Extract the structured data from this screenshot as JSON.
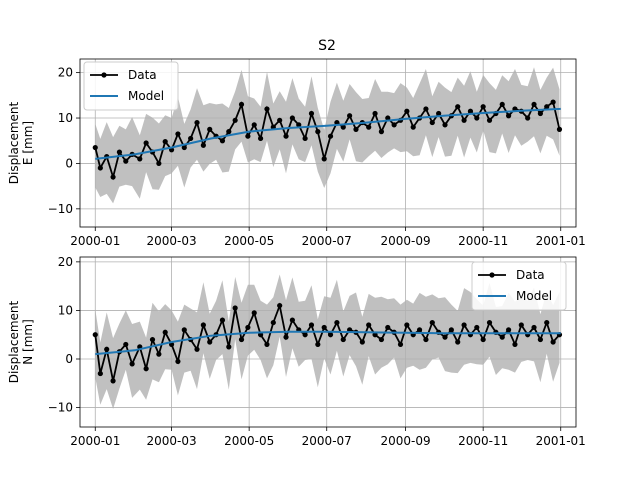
{
  "chart_data": [
    {
      "type": "line",
      "title": "S2",
      "xlabel": "",
      "ylabel": "Displacement\nE [mm]",
      "xlim": [
        "1999-12-20",
        "2001-01-13"
      ],
      "ylim": [
        -14,
        23
      ],
      "x_ticks": [
        "2000-01",
        "2000-03",
        "2000-05",
        "2000-07",
        "2000-09",
        "2000-11",
        "2001-01"
      ],
      "y_ticks": [
        -10,
        0,
        10,
        20
      ],
      "grid": true,
      "legend": {
        "position": "top-left",
        "entries": [
          "Data",
          "Model"
        ]
      },
      "colors": {
        "data": "#000000",
        "model": "#1f77b4",
        "band": "#c0c0c0"
      },
      "series": [
        {
          "name": "Data",
          "x": [
            "2000-01-01",
            "2000-01-05",
            "2000-01-10",
            "2000-01-15",
            "2000-01-20",
            "2000-01-25",
            "2000-01-30",
            "2000-02-05",
            "2000-02-10",
            "2000-02-15",
            "2000-02-20",
            "2000-02-25",
            "2000-03-01",
            "2000-03-06",
            "2000-03-11",
            "2000-03-16",
            "2000-03-21",
            "2000-03-26",
            "2000-03-31",
            "2000-04-05",
            "2000-04-10",
            "2000-04-15",
            "2000-04-20",
            "2000-04-25",
            "2000-04-30",
            "2000-05-05",
            "2000-05-10",
            "2000-05-15",
            "2000-05-20",
            "2000-05-25",
            "2000-05-30",
            "2000-06-04",
            "2000-06-09",
            "2000-06-14",
            "2000-06-19",
            "2000-06-24",
            "2000-06-29",
            "2000-07-04",
            "2000-07-09",
            "2000-07-14",
            "2000-07-19",
            "2000-07-24",
            "2000-07-29",
            "2000-08-03",
            "2000-08-08",
            "2000-08-13",
            "2000-08-18",
            "2000-08-23",
            "2000-08-28",
            "2000-09-02",
            "2000-09-07",
            "2000-09-12",
            "2000-09-17",
            "2000-09-22",
            "2000-09-27",
            "2000-10-02",
            "2000-10-07",
            "2000-10-12",
            "2000-10-17",
            "2000-10-22",
            "2000-10-27",
            "2000-11-01",
            "2000-11-06",
            "2000-11-11",
            "2000-11-16",
            "2000-11-21",
            "2000-11-26",
            "2000-12-01",
            "2000-12-06",
            "2000-12-11",
            "2000-12-16",
            "2000-12-21",
            "2000-12-26",
            "2000-12-31"
          ],
          "values": [
            3.5,
            -1.0,
            1.5,
            -3.0,
            2.5,
            0.5,
            2.0,
            1.0,
            4.5,
            2.5,
            0.0,
            4.8,
            3.0,
            6.5,
            3.5,
            5.5,
            9.0,
            4.0,
            7.5,
            6.0,
            5.0,
            7.0,
            9.5,
            13.0,
            6.0,
            8.5,
            5.5,
            12.0,
            8.0,
            9.5,
            6.0,
            10.0,
            8.5,
            5.5,
            11.0,
            7.0,
            1.0,
            6.0,
            9.0,
            8.0,
            10.5,
            7.5,
            9.0,
            8.0,
            11.0,
            7.0,
            10.0,
            8.5,
            9.5,
            11.5,
            8.0,
            10.0,
            12.0,
            9.0,
            11.0,
            8.5,
            10.5,
            12.5,
            9.5,
            11.5,
            10.0,
            12.5,
            9.5,
            11.0,
            13.0,
            10.5,
            12.0,
            11.5,
            10.0,
            13.0,
            11.0,
            12.5,
            13.5,
            7.5
          ]
        },
        {
          "name": "Model",
          "x": [
            "2000-01-01",
            "2000-02-01",
            "2000-03-01",
            "2000-04-01",
            "2000-05-01",
            "2000-06-01",
            "2000-07-01",
            "2000-08-01",
            "2000-09-01",
            "2000-10-01",
            "2000-11-01",
            "2000-12-01",
            "2001-01-01"
          ],
          "values": [
            1.0,
            2.0,
            3.5,
            5.5,
            7.0,
            7.8,
            8.3,
            9.0,
            9.8,
            10.5,
            11.1,
            11.6,
            12.0
          ]
        }
      ]
    },
    {
      "type": "line",
      "title": "",
      "xlabel": "",
      "ylabel": "Displacement\nN [mm]",
      "xlim": [
        "1999-12-20",
        "2001-01-13"
      ],
      "ylim": [
        -14,
        21
      ],
      "x_ticks": [
        "2000-01",
        "2000-03",
        "2000-05",
        "2000-07",
        "2000-09",
        "2000-11",
        "2001-01"
      ],
      "y_ticks": [
        -10,
        0,
        10,
        20
      ],
      "grid": true,
      "legend": {
        "position": "top-right",
        "entries": [
          "Data",
          "Model"
        ]
      },
      "colors": {
        "data": "#000000",
        "model": "#1f77b4",
        "band": "#c0c0c0"
      },
      "series": [
        {
          "name": "Data",
          "x": [
            "2000-01-01",
            "2000-01-05",
            "2000-01-10",
            "2000-01-15",
            "2000-01-20",
            "2000-01-25",
            "2000-01-30",
            "2000-02-05",
            "2000-02-10",
            "2000-02-15",
            "2000-02-20",
            "2000-02-25",
            "2000-03-01",
            "2000-03-06",
            "2000-03-11",
            "2000-03-16",
            "2000-03-21",
            "2000-03-26",
            "2000-03-31",
            "2000-04-05",
            "2000-04-10",
            "2000-04-15",
            "2000-04-20",
            "2000-04-25",
            "2000-04-30",
            "2000-05-05",
            "2000-05-10",
            "2000-05-15",
            "2000-05-20",
            "2000-05-25",
            "2000-05-30",
            "2000-06-04",
            "2000-06-09",
            "2000-06-14",
            "2000-06-19",
            "2000-06-24",
            "2000-06-29",
            "2000-07-04",
            "2000-07-09",
            "2000-07-14",
            "2000-07-19",
            "2000-07-24",
            "2000-07-29",
            "2000-08-03",
            "2000-08-08",
            "2000-08-13",
            "2000-08-18",
            "2000-08-23",
            "2000-08-28",
            "2000-09-02",
            "2000-09-07",
            "2000-09-12",
            "2000-09-17",
            "2000-09-22",
            "2000-09-27",
            "2000-10-02",
            "2000-10-07",
            "2000-10-12",
            "2000-10-17",
            "2000-10-22",
            "2000-10-27",
            "2000-11-01",
            "2000-11-06",
            "2000-11-11",
            "2000-11-16",
            "2000-11-21",
            "2000-11-26",
            "2000-12-01",
            "2000-12-06",
            "2000-12-11",
            "2000-12-16",
            "2000-12-21",
            "2000-12-26",
            "2000-12-31"
          ],
          "values": [
            5.0,
            -3.0,
            2.0,
            -4.5,
            1.5,
            3.0,
            -1.0,
            2.5,
            -2.0,
            4.0,
            1.0,
            5.5,
            3.0,
            -0.5,
            6.0,
            4.0,
            2.0,
            7.0,
            3.5,
            5.0,
            8.0,
            2.5,
            10.5,
            4.0,
            6.5,
            9.5,
            5.0,
            3.0,
            7.5,
            11.0,
            4.5,
            8.0,
            6.0,
            5.0,
            7.0,
            3.0,
            6.5,
            5.0,
            7.5,
            4.0,
            6.0,
            5.5,
            3.5,
            7.0,
            5.0,
            4.0,
            6.5,
            5.5,
            3.0,
            7.0,
            5.0,
            6.0,
            4.0,
            7.5,
            5.5,
            4.5,
            6.0,
            3.5,
            7.0,
            5.0,
            6.5,
            4.0,
            7.5,
            5.5,
            4.5,
            6.0,
            3.0,
            7.0,
            5.0,
            6.5,
            4.0,
            7.5,
            3.5,
            5.0
          ]
        },
        {
          "name": "Model",
          "x": [
            "2000-01-01",
            "2000-02-01",
            "2000-03-01",
            "2000-04-01",
            "2000-05-01",
            "2000-06-01",
            "2000-07-01",
            "2000-08-01",
            "2000-09-01",
            "2000-10-01",
            "2000-11-01",
            "2000-12-01",
            "2001-01-01"
          ],
          "values": [
            1.0,
            1.8,
            3.5,
            4.8,
            5.4,
            5.6,
            5.6,
            5.5,
            5.4,
            5.3,
            5.3,
            5.3,
            5.3
          ]
        }
      ]
    }
  ]
}
